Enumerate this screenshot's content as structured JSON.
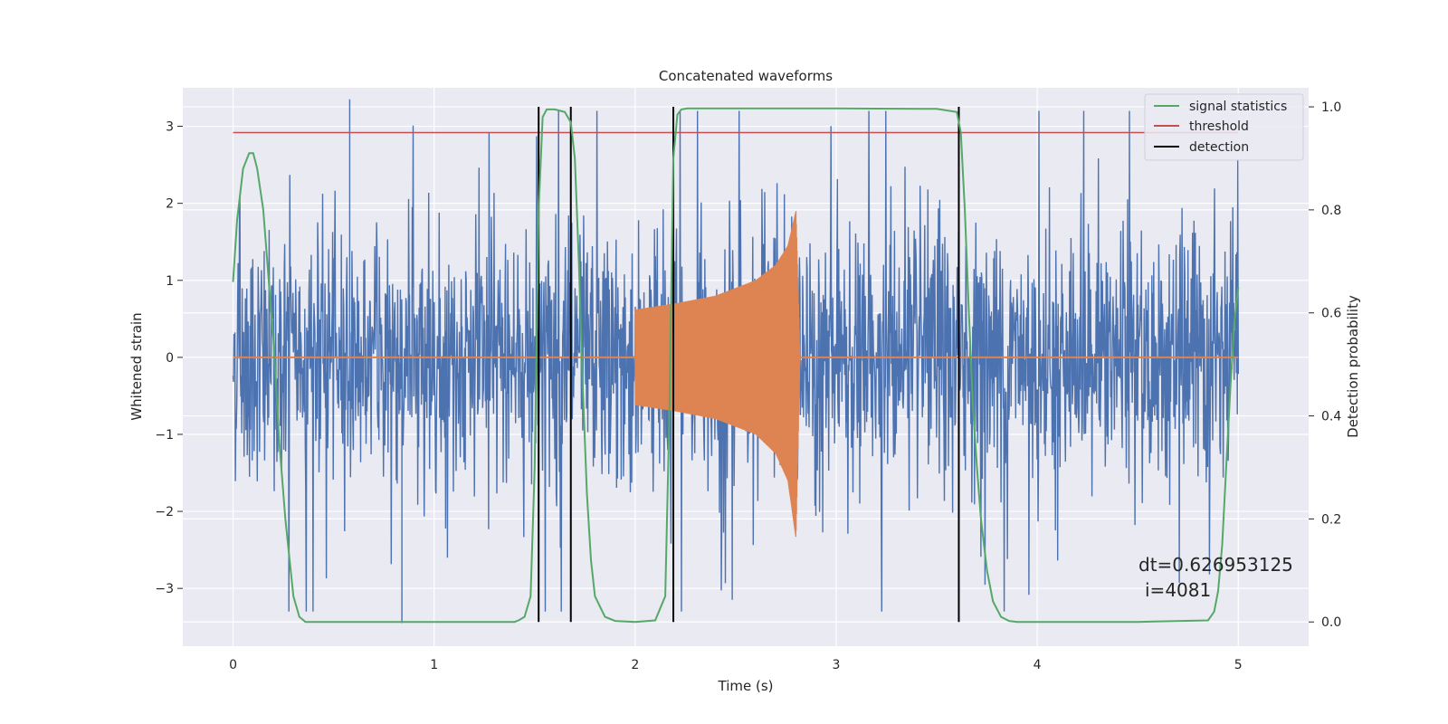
{
  "chart_data": {
    "type": "line",
    "title": "Concatenated waveforms",
    "xlabel": "Time (s)",
    "ylabel": "Whitened strain",
    "y2label": "Detection probability",
    "xlim": [
      -0.25,
      5.35
    ],
    "ylim": [
      -3.75,
      3.5
    ],
    "y2lim": [
      -0.047,
      1.037
    ],
    "x_ticks": [
      0,
      1,
      2,
      3,
      4,
      5
    ],
    "y_ticks": [
      -3,
      -2,
      -1,
      0,
      1,
      2,
      3
    ],
    "y2_ticks": [
      0.0,
      0.2,
      0.4,
      0.6,
      0.8,
      1.0
    ],
    "x_tick_labels": [
      "0",
      "1",
      "2",
      "3",
      "4",
      "5"
    ],
    "y_tick_labels": [
      "−3",
      "−2",
      "−1",
      "0",
      "1",
      "2",
      "3"
    ],
    "y2_tick_labels": [
      "0.0",
      "0.2",
      "0.4",
      "0.6",
      "0.8",
      "1.0"
    ],
    "grid": true,
    "legend_position": "top-right",
    "colors": {
      "background": "#eaeaf2",
      "noise": "#4c72b0",
      "injection": "#dd8452",
      "signal_statistics": "#55a868",
      "threshold": "#c44e52",
      "detection": "#000000"
    },
    "series": [
      {
        "name": "signal statistics",
        "axis": "right",
        "x": [
          0,
          0.02,
          0.05,
          0.08,
          0.1,
          0.12,
          0.15,
          0.18,
          0.2,
          0.23,
          0.26,
          0.3,
          0.33,
          0.36,
          0.4,
          0.6,
          1.0,
          1.4,
          1.42,
          1.45,
          1.48,
          1.5,
          1.52,
          1.54,
          1.56,
          1.6,
          1.65,
          1.68,
          1.7,
          1.72,
          1.74,
          1.76,
          1.78,
          1.8,
          1.85,
          1.9,
          2.0,
          2.1,
          2.15,
          2.17,
          2.19,
          2.21,
          2.23,
          2.26,
          2.3,
          2.5,
          3.0,
          3.5,
          3.6,
          3.62,
          3.64,
          3.66,
          3.68,
          3.7,
          3.72,
          3.75,
          3.78,
          3.82,
          3.86,
          3.9,
          4.0,
          4.5,
          4.85,
          4.88,
          4.9,
          4.92,
          4.94,
          4.96,
          4.98,
          5.0
        ],
        "y": [
          0.66,
          0.78,
          0.88,
          0.91,
          0.91,
          0.88,
          0.8,
          0.65,
          0.55,
          0.35,
          0.2,
          0.05,
          0.01,
          0.0,
          0.0,
          0.0,
          0.0,
          0.0,
          0.003,
          0.01,
          0.05,
          0.3,
          0.8,
          0.98,
          0.995,
          0.995,
          0.99,
          0.97,
          0.9,
          0.7,
          0.45,
          0.25,
          0.12,
          0.05,
          0.01,
          0.002,
          0.0,
          0.003,
          0.05,
          0.4,
          0.9,
          0.985,
          0.995,
          0.997,
          0.997,
          0.997,
          0.997,
          0.996,
          0.99,
          0.95,
          0.8,
          0.6,
          0.42,
          0.3,
          0.2,
          0.1,
          0.04,
          0.01,
          0.002,
          0.0,
          0.0,
          0.0,
          0.003,
          0.02,
          0.06,
          0.15,
          0.3,
          0.45,
          0.58,
          0.65
        ]
      },
      {
        "name": "threshold",
        "axis": "right",
        "x": [
          0,
          5
        ],
        "y": [
          0.95,
          0.95
        ]
      },
      {
        "name": "detection",
        "axis": "left",
        "x_positions": [
          1.52,
          1.68,
          2.19,
          3.61
        ]
      },
      {
        "name": "",
        "role": "noise",
        "axis": "left",
        "x_range": [
          0,
          5
        ],
        "amplitude_approx": 2.0,
        "peak_values": [
          {
            "x": 0.58,
            "y": 3.35
          },
          {
            "x": 0.84,
            "y": -3.45
          }
        ]
      },
      {
        "name": "",
        "role": "injected waveform",
        "axis": "left",
        "x_range": [
          2.0,
          2.82
        ],
        "envelope_x": [
          2.0,
          2.2,
          2.4,
          2.6,
          2.7,
          2.76,
          2.8,
          2.82
        ],
        "envelope_y": [
          0.62,
          0.7,
          0.8,
          1.0,
          1.2,
          1.45,
          1.9,
          0.0
        ],
        "envelope_y_min": [
          -0.62,
          -0.7,
          -0.8,
          -1.0,
          -1.25,
          -1.6,
          -2.35,
          0.0
        ]
      }
    ],
    "legend": [
      "signal statistics",
      "threshold",
      "detection"
    ],
    "annotation": {
      "line1": "dt=0.626953125",
      "line2": "i=4081"
    }
  }
}
